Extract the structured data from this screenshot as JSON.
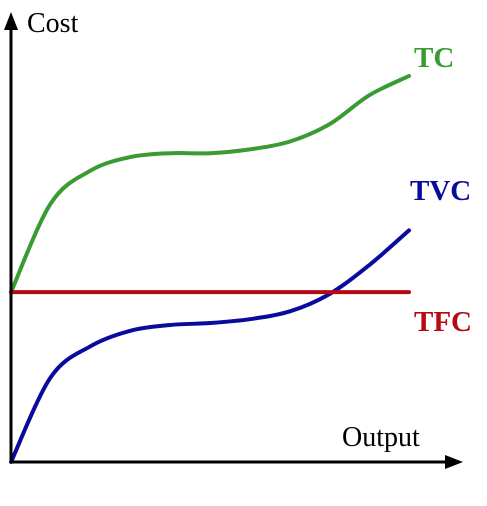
{
  "chart_data": {
    "type": "line",
    "xlabel": "Output",
    "ylabel": "Cost",
    "grid": false,
    "legend": "none (curves labeled directly at right end)",
    "x": [
      0,
      0.1,
      0.2,
      0.3,
      0.4,
      0.5,
      0.6,
      0.7,
      0.8,
      0.9,
      1.0
    ],
    "series": [
      {
        "name": "TC",
        "color": "#3a9b35",
        "values": [
          0.44,
          0.67,
          0.755,
          0.79,
          0.8,
          0.8,
          0.81,
          0.83,
          0.875,
          0.95,
          1.0
        ]
      },
      {
        "name": "TVC",
        "color": "#0a0a9c",
        "values": [
          0.0,
          0.22,
          0.3,
          0.34,
          0.355,
          0.36,
          0.37,
          0.39,
          0.435,
          0.51,
          0.6
        ]
      },
      {
        "name": "TFC",
        "color": "#b50a15",
        "values": [
          0.44,
          0.44,
          0.44,
          0.44,
          0.44,
          0.44,
          0.44,
          0.44,
          0.44,
          0.44,
          0.44
        ]
      }
    ]
  }
}
